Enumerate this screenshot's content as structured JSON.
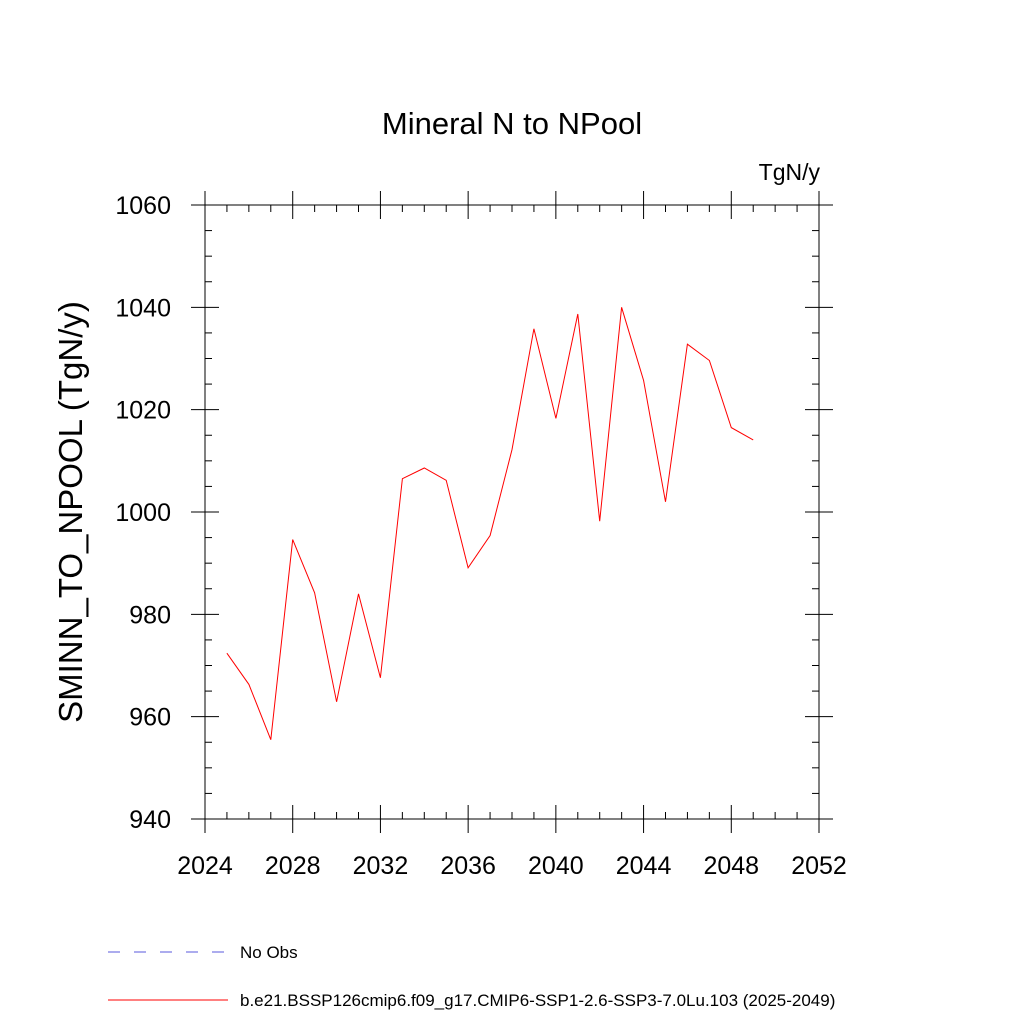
{
  "chart_data": {
    "type": "line",
    "title": "Mineral N to NPool",
    "units_label": "TgN/y",
    "ylabel": "SMINN_TO_NPOOL  (TgN/y)",
    "xlabel": "",
    "xlim": [
      2024,
      2052
    ],
    "ylim": [
      940,
      1060
    ],
    "x_ticks": [
      2024,
      2028,
      2032,
      2036,
      2040,
      2044,
      2048,
      2052
    ],
    "x_tick_labels": [
      "2024",
      "2028",
      "2032",
      "2036",
      "2040",
      "2044",
      "2048",
      "2052"
    ],
    "y_ticks": [
      940,
      960,
      980,
      1000,
      1020,
      1040,
      1060
    ],
    "y_tick_labels": [
      "940",
      "960",
      "980",
      "1000",
      "1020",
      "1040",
      "1060"
    ],
    "x_minor_step": 1,
    "y_minor_step": 5,
    "grid": false,
    "legend_position": "bottom",
    "series": [
      {
        "name": "b.e21.BSSP126cmip6.f09_g17.CMIP6-SSP1-2.6-SSP3-7.0Lu.103 (2025-2049)",
        "color": "#ff0000",
        "style": "solid",
        "x": [
          2025,
          2026,
          2027,
          2028,
          2029,
          2030,
          2031,
          2032,
          2033,
          2034,
          2035,
          2036,
          2037,
          2038,
          2039,
          2040,
          2041,
          2042,
          2043,
          2044,
          2045,
          2046,
          2047,
          2048,
          2049
        ],
        "values": [
          972.4,
          966.3,
          955.5,
          994.6,
          984.2,
          962.9,
          984.0,
          967.6,
          1006.5,
          1008.6,
          1006.2,
          989.1,
          995.4,
          1012.2,
          1035.8,
          1018.3,
          1038.7,
          998.2,
          1040.0,
          1025.7,
          1002.0,
          1032.8,
          1029.6,
          1016.5,
          1014.1
        ]
      }
    ],
    "legend": [
      {
        "label": "No Obs",
        "color": "#5a5adc",
        "style": "dashed"
      },
      {
        "label": "b.e21.BSSP126cmip6.f09_g17.CMIP6-SSP1-2.6-SSP3-7.0Lu.103 (2025-2049)",
        "color": "#ff0000",
        "style": "solid"
      }
    ]
  }
}
